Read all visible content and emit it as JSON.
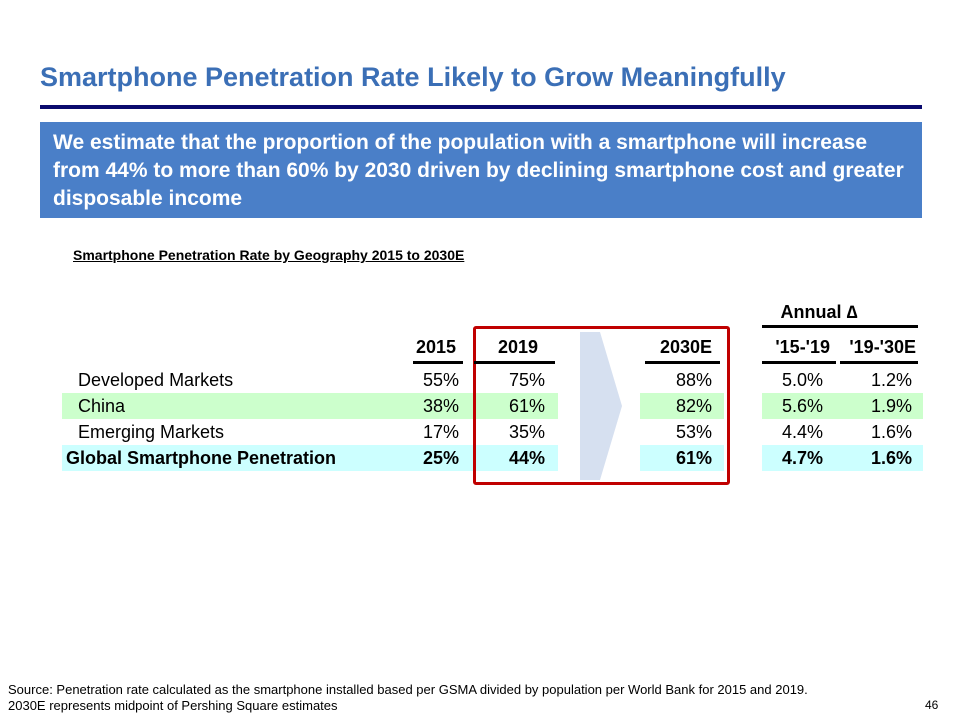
{
  "title": "Smartphone Penetration Rate Likely to Grow Meaningfully",
  "callout": "We estimate that the proportion of the population with a smartphone will increase from 44% to more than 60% by 2030 driven by declining smartphone cost and greater disposable income",
  "table_title": "Smartphone Penetration Rate by Geography 2015 to 2030E",
  "table": {
    "group_header": "Annual ∆",
    "headers": [
      "2015",
      "2019",
      "2030E",
      "'15-'19",
      "'19-'30E"
    ],
    "rows": [
      {
        "label": "Developed Markets",
        "values": [
          "55%",
          "75%",
          "88%",
          "5.0%",
          "1.2%"
        ]
      },
      {
        "label": "China",
        "values": [
          "38%",
          "61%",
          "82%",
          "5.6%",
          "1.9%"
        ]
      },
      {
        "label": "Emerging Markets",
        "values": [
          "17%",
          "35%",
          "53%",
          "4.4%",
          "1.6%"
        ]
      },
      {
        "label": "Global Smartphone Penetration",
        "values": [
          "25%",
          "44%",
          "61%",
          "4.7%",
          "1.6%"
        ]
      }
    ]
  },
  "colors": {
    "title": "#3b6fb6",
    "callout_bg": "#4a7fc8",
    "highlight_green": "#ccffcc",
    "highlight_cyan": "#ccffff",
    "highlight_box": "#c00000",
    "arrow": "#d6e0f0"
  },
  "footer": {
    "source_line1": "Source: Penetration rate calculated as the smartphone installed based per GSMA divided by population per World Bank for 2015 and 2019.",
    "source_line2": "2030E represents midpoint of Pershing Square estimates",
    "page_number": "46"
  }
}
